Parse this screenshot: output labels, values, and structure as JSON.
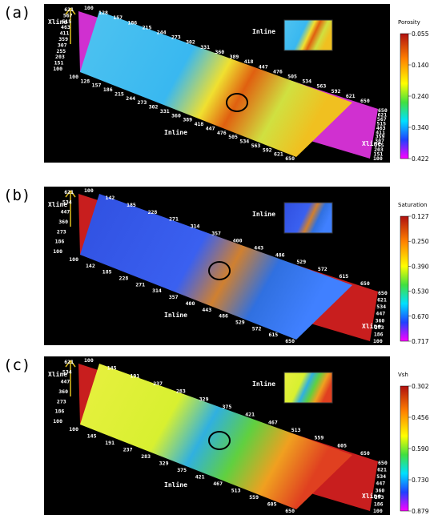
{
  "panels": [
    {
      "label": "(a)",
      "inline": "Inline",
      "xline": "Xline",
      "top_ticks": [
        "100",
        "128",
        "157",
        "186",
        "215",
        "244",
        "273",
        "302",
        "331",
        "360",
        "389",
        "418",
        "447",
        "476",
        "505",
        "534",
        "563",
        "592",
        "621",
        "650"
      ],
      "left_ticks": [
        "621",
        "567",
        "515",
        "463",
        "411",
        "359",
        "307",
        "255",
        "203",
        "151",
        "100"
      ],
      "bottom_ticks": [
        "100",
        "128",
        "157",
        "186",
        "215",
        "244",
        "273",
        "302",
        "331",
        "360",
        "389",
        "418",
        "447",
        "476",
        "505",
        "534",
        "563",
        "592",
        "621",
        "650"
      ],
      "right_ticks": [
        "650",
        "621",
        "567",
        "515",
        "463",
        "411",
        "359",
        "307",
        "255",
        "203",
        "151",
        "100"
      ],
      "colorbar": {
        "title": "Porosity",
        "ticks": [
          "0.055",
          "0.140",
          "0.240",
          "0.340",
          "0.422"
        ]
      }
    },
    {
      "label": "(b)",
      "inline": "Inline",
      "xline": "Xline",
      "top_ticks": [
        "100",
        "142",
        "185",
        "228",
        "271",
        "314",
        "357",
        "400",
        "443",
        "486",
        "529",
        "572",
        "615",
        "650"
      ],
      "left_ticks": [
        "621",
        "534",
        "447",
        "360",
        "273",
        "186",
        "100"
      ],
      "bottom_ticks": [
        "100",
        "142",
        "185",
        "228",
        "271",
        "314",
        "357",
        "400",
        "443",
        "486",
        "529",
        "572",
        "615",
        "650"
      ],
      "right_ticks": [
        "650",
        "621",
        "534",
        "447",
        "360",
        "273",
        "186",
        "100"
      ],
      "colorbar": {
        "title": "Saturation",
        "ticks": [
          "0.127",
          "0.250",
          "0.390",
          "0.530",
          "0.670",
          "0.717"
        ]
      }
    },
    {
      "label": "(c)",
      "inline": "Inline",
      "xline": "Xline",
      "top_ticks": [
        "100",
        "145",
        "191",
        "237",
        "283",
        "329",
        "375",
        "421",
        "467",
        "513",
        "559",
        "605",
        "650"
      ],
      "left_ticks": [
        "621",
        "534",
        "447",
        "360",
        "273",
        "186",
        "100"
      ],
      "bottom_ticks": [
        "100",
        "145",
        "191",
        "237",
        "283",
        "329",
        "375",
        "421",
        "467",
        "513",
        "559",
        "605",
        "650"
      ],
      "right_ticks": [
        "650",
        "621",
        "534",
        "447",
        "360",
        "273",
        "186",
        "100"
      ],
      "colorbar": {
        "title": "Vsh",
        "ticks": [
          "0.302",
          "0.456",
          "0.590",
          "0.730",
          "0.879"
        ]
      }
    }
  ]
}
